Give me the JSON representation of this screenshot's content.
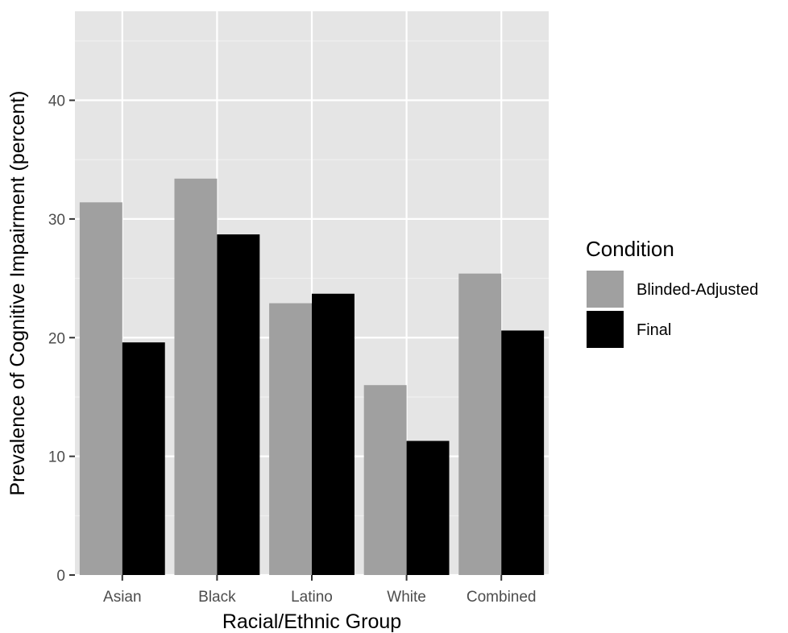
{
  "chart_data": {
    "type": "bar",
    "title": "",
    "xlabel": "Racial/Ethnic Group",
    "ylabel": "Prevalence of Cognitive Impairment (percent)",
    "categories": [
      "Asian",
      "Black",
      "Latino",
      "White",
      "Combined"
    ],
    "series": [
      {
        "name": "Blinded-Adjusted",
        "color": "#a0a0a0",
        "values": [
          31.4,
          33.4,
          22.9,
          16.0,
          25.4
        ]
      },
      {
        "name": "Final",
        "color": "#000000",
        "values": [
          19.6,
          28.7,
          23.7,
          11.3,
          20.6
        ]
      }
    ],
    "ylim": [
      0,
      47.5
    ],
    "yticks": [
      0,
      10,
      20,
      30,
      40
    ],
    "ytick_labels": [
      "0",
      "10",
      "20",
      "30",
      "40"
    ],
    "grid": true,
    "panel_background": "#e5e5e5",
    "legend": {
      "title": "Condition",
      "position": "right"
    }
  }
}
